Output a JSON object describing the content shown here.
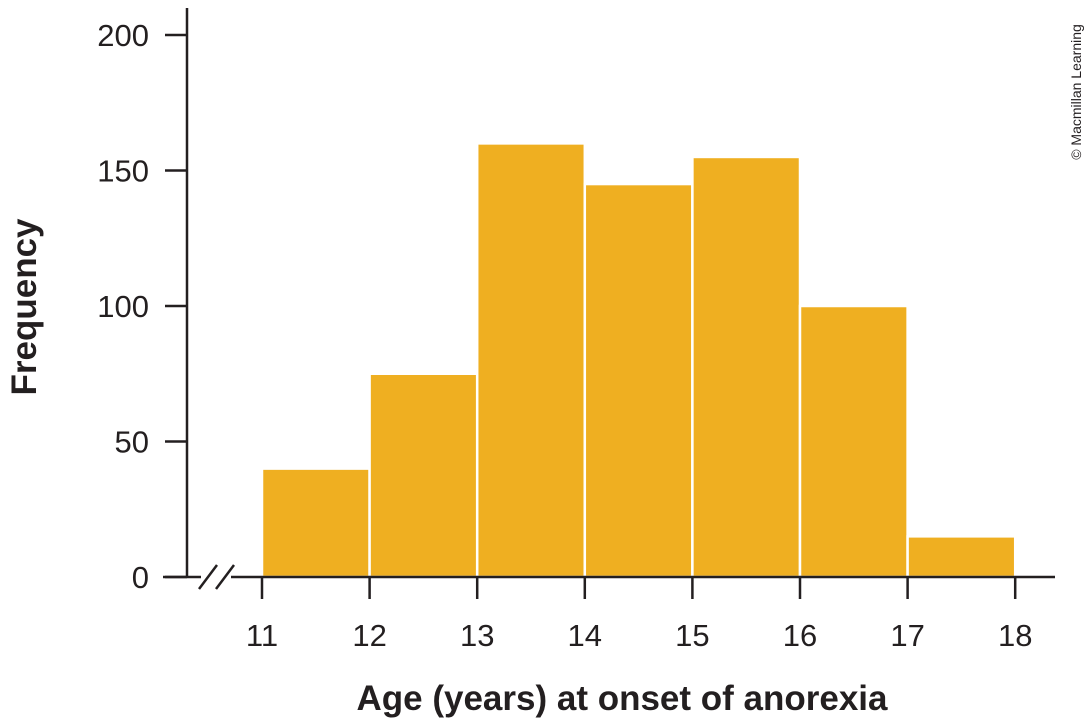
{
  "chart_data": {
    "type": "bar",
    "subtype": "histogram",
    "bin_edges": [
      11,
      12,
      13,
      14,
      15,
      16,
      17,
      18
    ],
    "values": [
      40,
      75,
      160,
      145,
      155,
      100,
      15
    ],
    "x_ticks": [
      "11",
      "12",
      "13",
      "14",
      "15",
      "16",
      "17",
      "18"
    ],
    "y_ticks": [
      "0",
      "50",
      "100",
      "150",
      "200"
    ],
    "xlim": [
      10,
      18.4
    ],
    "ylim": [
      0,
      210
    ],
    "xlabel": "Age (years) at onset of anorexia",
    "ylabel": "Frequency",
    "title": "",
    "axis_break": true,
    "grid": false,
    "bar_color": "#efaf21",
    "text_color": "#231f20"
  },
  "credit": "© Macmillan Learning"
}
